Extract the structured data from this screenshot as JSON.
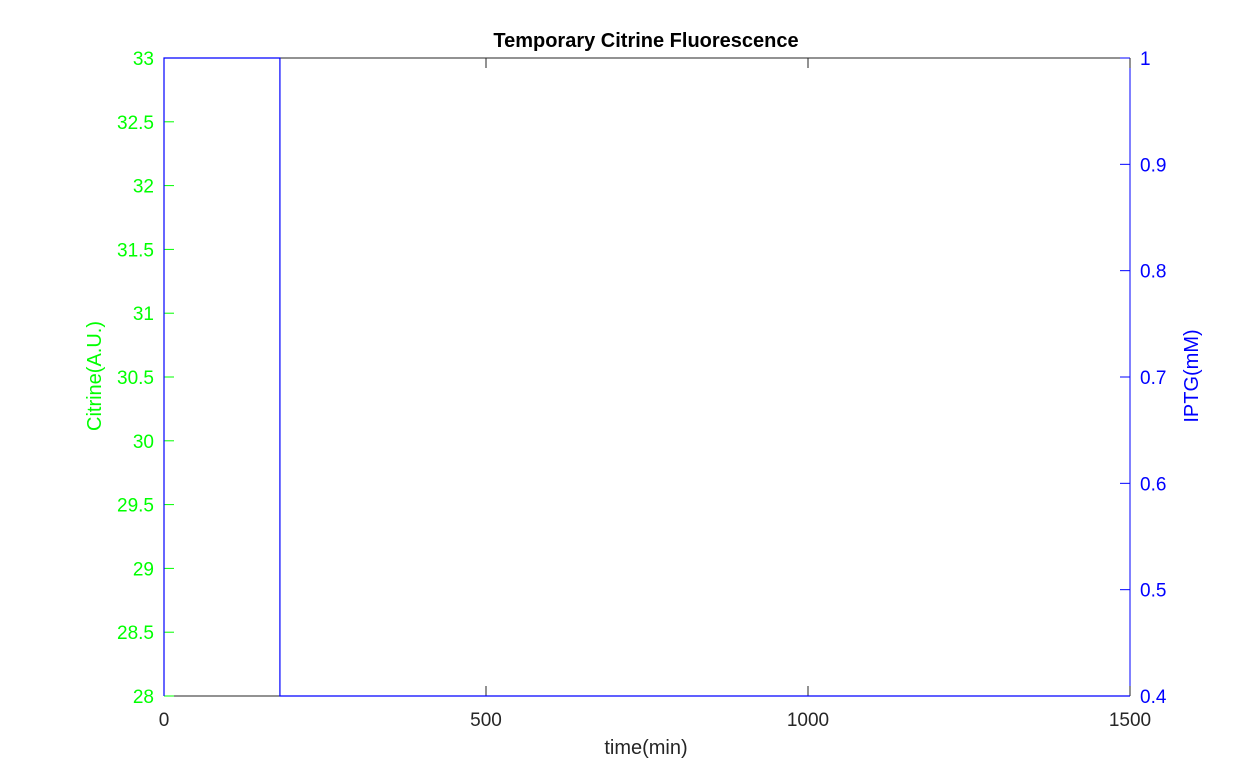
{
  "chart_data": {
    "type": "line",
    "title": "Temporary Citrine Fluorescence",
    "xlabel": "time(min)",
    "ylabel_left": "Citrine(A.U.)",
    "ylabel_right": "IPTG(mM)",
    "xlim": [
      0,
      1500
    ],
    "ylim_left": [
      28,
      33
    ],
    "ylim_right": [
      0.4,
      1
    ],
    "x_ticks": [
      0,
      500,
      1000,
      1500
    ],
    "x_tick_labels": [
      "0",
      "500",
      "1000",
      "1500"
    ],
    "y_left_ticks": [
      28,
      28.5,
      29,
      29.5,
      30,
      30.5,
      31,
      31.5,
      32,
      32.5,
      33
    ],
    "y_left_tick_labels": [
      "28",
      "28.5",
      "29",
      "29.5",
      "30",
      "30.5",
      "31",
      "31.5",
      "32",
      "32.5",
      "33"
    ],
    "y_right_ticks": [
      0.4,
      0.5,
      0.6,
      0.7,
      0.8,
      0.9,
      1
    ],
    "y_right_tick_labels": [
      "0.4",
      "0.5",
      "0.6",
      "0.7",
      "0.8",
      "0.9",
      "1"
    ],
    "grid": false,
    "legend": false,
    "colors": {
      "left_axis": "#00ff00",
      "right_axis": "#0000ff",
      "text": "#262626"
    },
    "series": [
      {
        "axis": "right",
        "color": "#0000ff",
        "x": [
          0,
          0,
          180,
          180,
          1500
        ],
        "y": [
          0.4,
          1,
          1,
          0.4,
          0.4
        ]
      }
    ]
  }
}
